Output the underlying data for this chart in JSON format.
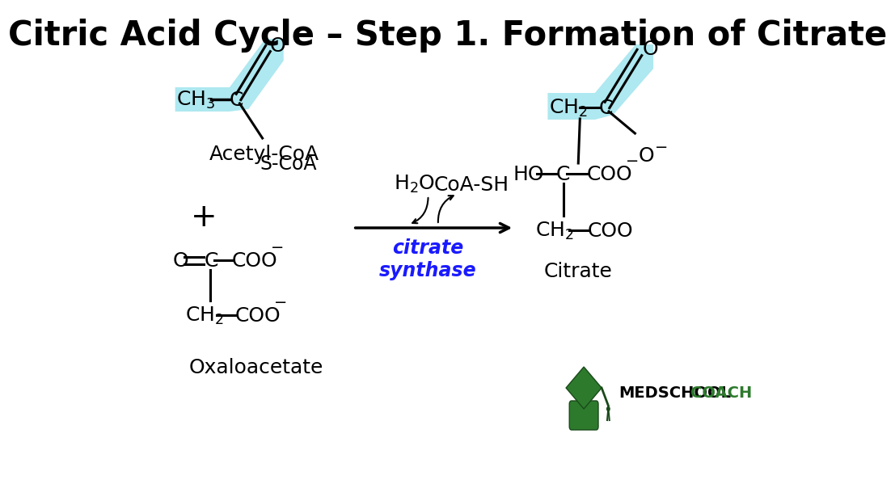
{
  "title": "Citric Acid Cycle – Step 1. Formation of Citrate",
  "bg_color": "#ffffff",
  "highlight_color": "#aee8f0",
  "text_color": "#000000",
  "blue_color": "#1a1aff",
  "title_size": 30,
  "fs": 18,
  "fs_small": 14
}
